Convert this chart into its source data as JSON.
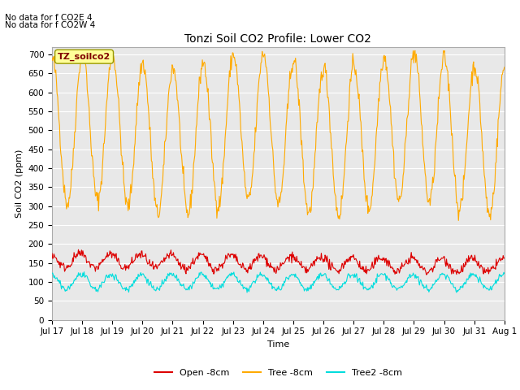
{
  "title": "Tonzi Soil CO2 Profile: Lower CO2",
  "xlabel": "Time",
  "ylabel": "Soil CO2 (ppm)",
  "ylim": [
    0,
    720
  ],
  "yticks": [
    0,
    50,
    100,
    150,
    200,
    250,
    300,
    350,
    400,
    450,
    500,
    550,
    600,
    650,
    700
  ],
  "bg_color": "#e8e8e8",
  "line_colors": {
    "open": "#dd0000",
    "tree": "#ffaa00",
    "tree2": "#00dddd"
  },
  "legend_labels": [
    "Open -8cm",
    "Tree -8cm",
    "Tree2 -8cm"
  ],
  "annotation_text": "TZ_soilco2",
  "annotation_color": "#800000",
  "no_data_text1": "No data for f CO2E 4",
  "no_data_text2": "No data for f CO2W 4",
  "xtick_labels": [
    "Jul 17",
    "Jul 18",
    "Jul 19",
    "Jul 20",
    "Jul 21",
    "Jul 22",
    "Jul 23",
    "Jul 24",
    "Jul 25",
    "Jul 26",
    "Jul 27",
    "Jul 28",
    "Jul 29",
    "Jul 30",
    "Jul 31",
    "Aug 1"
  ],
  "n_points": 720,
  "title_fontsize": 10,
  "axis_label_fontsize": 8,
  "tick_fontsize": 7.5,
  "legend_fontsize": 8,
  "no_data_fontsize": 7.5,
  "annotation_fontsize": 8
}
